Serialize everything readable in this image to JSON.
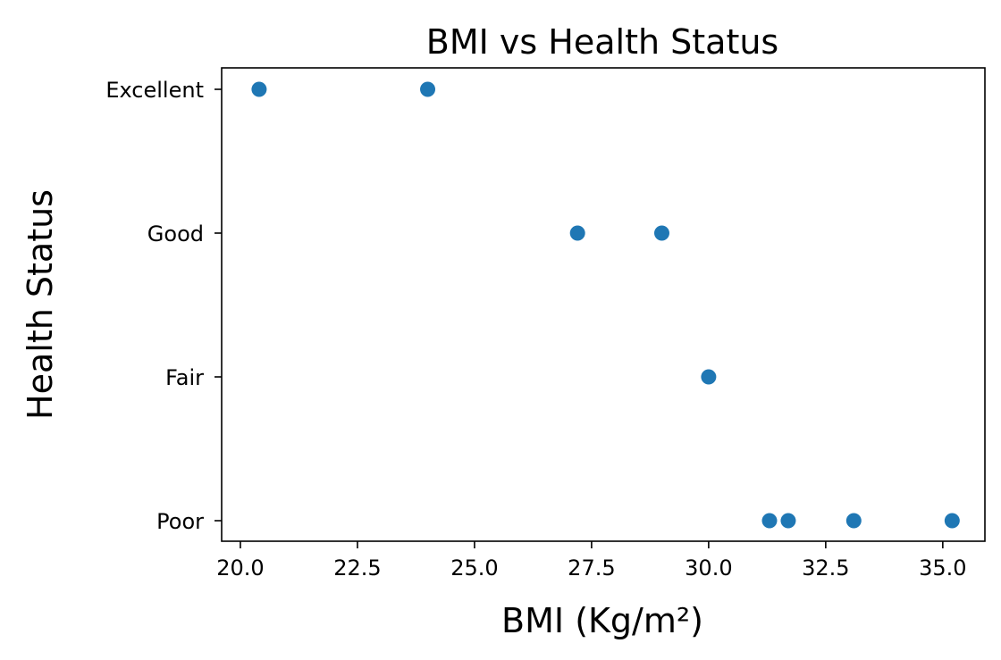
{
  "chart_data": {
    "type": "scatter",
    "title": "BMI vs Health Status",
    "xlabel": "BMI (Kg/m²)",
    "ylabel": "Health Status",
    "xlim": [
      19.6,
      35.9
    ],
    "x_ticks": [
      20.0,
      22.5,
      25.0,
      27.5,
      30.0,
      32.5,
      35.0
    ],
    "x_tick_labels": [
      "20.0",
      "22.5",
      "25.0",
      "27.5",
      "30.0",
      "32.5",
      "35.0"
    ],
    "y_categories": [
      "Poor",
      "Fair",
      "Good",
      "Excellent"
    ],
    "grid": false,
    "color": "#1f77b4",
    "points": [
      {
        "x": 20.4,
        "y": "Excellent"
      },
      {
        "x": 24.0,
        "y": "Excellent"
      },
      {
        "x": 27.2,
        "y": "Good"
      },
      {
        "x": 29.0,
        "y": "Good"
      },
      {
        "x": 30.0,
        "y": "Fair"
      },
      {
        "x": 31.3,
        "y": "Poor"
      },
      {
        "x": 31.7,
        "y": "Poor"
      },
      {
        "x": 33.1,
        "y": "Poor"
      },
      {
        "x": 35.2,
        "y": "Poor"
      }
    ]
  }
}
